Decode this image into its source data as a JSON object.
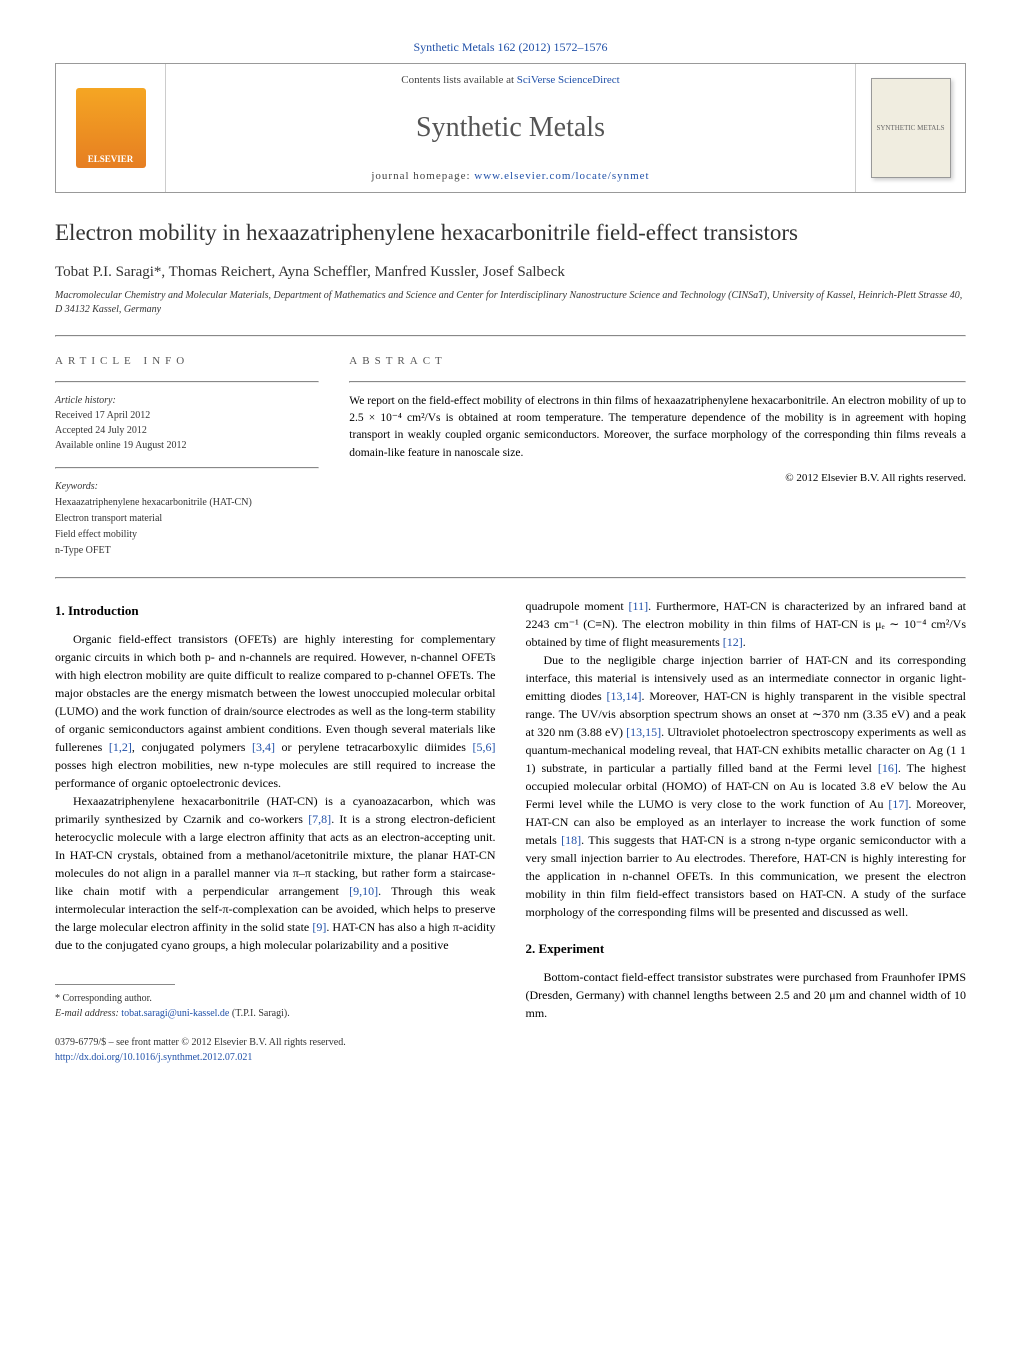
{
  "journal_ref": "Synthetic Metals 162 (2012) 1572–1576",
  "header": {
    "contents_prefix": "Contents lists available at ",
    "contents_link": "SciVerse ScienceDirect",
    "journal_name": "Synthetic Metals",
    "homepage_prefix": "journal homepage: ",
    "homepage_link": "www.elsevier.com/locate/synmet",
    "publisher_logo": "ELSEVIER",
    "cover_label": "SYNTHETIC METALS"
  },
  "title": "Electron mobility in hexaazatriphenylene hexacarbonitrile field-effect transistors",
  "authors": "Tobat P.I. Saragi*, Thomas Reichert, Ayna Scheffler, Manfred Kussler, Josef Salbeck",
  "affiliation": "Macromolecular Chemistry and Molecular Materials, Department of Mathematics and Science and Center for Interdisciplinary Nanostructure Science and Technology (CINSaT), University of Kassel, Heinrich-Plett Strasse 40, D 34132 Kassel, Germany",
  "info": {
    "label": "ARTICLE INFO",
    "history_label": "Article history:",
    "received": "Received 17 April 2012",
    "accepted": "Accepted 24 July 2012",
    "online": "Available online 19 August 2012",
    "keywords_label": "Keywords:",
    "kw1": "Hexaazatriphenylene hexacarbonitrile (HAT-CN)",
    "kw2": "Electron transport material",
    "kw3": "Field effect mobility",
    "kw4": "n-Type OFET"
  },
  "abstract": {
    "label": "ABSTRACT",
    "text": "We report on the field-effect mobility of electrons in thin films of hexaazatriphenylene hexacarbonitrile. An electron mobility of up to 2.5 × 10⁻⁴ cm²/Vs is obtained at room temperature. The temperature dependence of the mobility is in agreement with hoping transport in weakly coupled organic semiconductors. Moreover, the surface morphology of the corresponding thin films reveals a domain-like feature in nanoscale size.",
    "copyright": "© 2012 Elsevier B.V. All rights reserved."
  },
  "sections": {
    "intro_heading": "1. Introduction",
    "intro_p1": "Organic field-effect transistors (OFETs) are highly interesting for complementary organic circuits in which both p- and n-channels are required. However, n-channel OFETs with high electron mobility are quite difficult to realize compared to p-channel OFETs. The major obstacles are the energy mismatch between the lowest unoccupied molecular orbital (LUMO) and the work function of drain/source electrodes as well as the long-term stability of organic semiconductors against ambient conditions. Even though several materials like fullerenes [1,2], conjugated polymers [3,4] or perylene tetracarboxylic diimides [5,6] posses high electron mobilities, new n-type molecules are still required to increase the performance of organic optoelectronic devices.",
    "intro_p2": "Hexaazatriphenylene hexacarbonitrile (HAT-CN) is a cyanoazacarbon, which was primarily synthesized by Czarnik and co-workers [7,8]. It is a strong electron-deficient heterocyclic molecule with a large electron affinity that acts as an electron-accepting unit. In HAT-CN crystals, obtained from a methanol/acetonitrile mixture, the planar HAT-CN molecules do not align in a parallel manner via π–π stacking, but rather form a staircase-like chain motif with a perpendicular arrangement [9,10]. Through this weak intermolecular interaction the self-π-complexation can be avoided, which helps to preserve the large molecular electron affinity in the solid state [9]. HAT-CN has also a high π-acidity due to the conjugated cyano groups, a high molecular polarizability and a positive",
    "intro_p3": "quadrupole moment [11]. Furthermore, HAT-CN is characterized by an infrared band at 2243 cm⁻¹ (C≡N). The electron mobility in thin films of HAT-CN is μₑ ∼ 10⁻⁴ cm²/Vs obtained by time of flight measurements [12].",
    "intro_p4": "Due to the negligible charge injection barrier of HAT-CN and its corresponding interface, this material is intensively used as an intermediate connector in organic light-emitting diodes [13,14]. Moreover, HAT-CN is highly transparent in the visible spectral range. The UV/vis absorption spectrum shows an onset at ∼370 nm (3.35 eV) and a peak at 320 nm (3.88 eV) [13,15]. Ultraviolet photoelectron spectroscopy experiments as well as quantum-mechanical modeling reveal, that HAT-CN exhibits metallic character on Ag (1 1 1) substrate, in particular a partially filled band at the Fermi level [16]. The highest occupied molecular orbital (HOMO) of HAT-CN on Au is located 3.8 eV below the Au Fermi level while the LUMO is very close to the work function of Au [17]. Moreover, HAT-CN can also be employed as an interlayer to increase the work function of some metals [18]. This suggests that HAT-CN is a strong n-type organic semiconductor with a very small injection barrier to Au electrodes. Therefore, HAT-CN is highly interesting for the application in n-channel OFETs. In this communication, we present the electron mobility in thin film field-effect transistors based on HAT-CN. A study of the surface morphology of the corresponding films will be presented and discussed as well.",
    "exp_heading": "2. Experiment",
    "exp_p1": "Bottom-contact field-effect transistor substrates were purchased from Fraunhofer IPMS (Dresden, Germany) with channel lengths between 2.5 and 20 μm and channel width of 10 mm."
  },
  "footer": {
    "corr": "* Corresponding author.",
    "email_label": "E-mail address: ",
    "email": "tobat.saragi@uni-kassel.de",
    "email_suffix": " (T.P.I. Saragi).",
    "issn": "0379-6779/$ – see front matter © 2012 Elsevier B.V. All rights reserved.",
    "doi": "http://dx.doi.org/10.1016/j.synthmet.2012.07.021"
  },
  "colors": {
    "link": "#2050a8",
    "text": "#000000",
    "rule": "#888888",
    "elsevier_orange": "#e67e22"
  }
}
